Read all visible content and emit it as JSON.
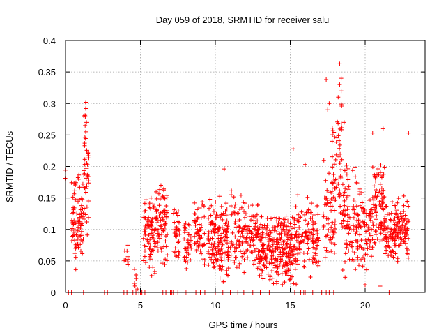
{
  "chart_data": {
    "type": "scatter",
    "title": "Day 059 of 2018, SRMTID for receiver salu",
    "xlabel": "GPS time / hours",
    "ylabel": "SRMTID / TECUs",
    "xlim": [
      0,
      24
    ],
    "ylim": [
      0,
      0.4
    ],
    "xticks": [
      0,
      5,
      10,
      15,
      20
    ],
    "xtick_labels": [
      "0",
      "5",
      "10",
      "15",
      "20"
    ],
    "yticks": [
      0,
      0.05,
      0.1,
      0.15,
      0.2,
      0.25,
      0.3,
      0.35,
      0.4
    ],
    "ytick_labels": [
      "0",
      "0.05",
      "0.1",
      "0.15",
      "0.2",
      "0.25",
      "0.3",
      "0.35",
      "0.4"
    ],
    "grid": true,
    "marker": "+",
    "color": "#ff0000",
    "clusters": [
      {
        "x_range": [
          -0.05,
          0.1
        ],
        "y_range": [
          0.17,
          0.2
        ],
        "n": 3
      },
      {
        "x_range": [
          0.4,
          1.2
        ],
        "y_range": [
          0.03,
          0.19
        ],
        "n": 90
      },
      {
        "x_range": [
          1.2,
          1.55
        ],
        "y_range": [
          0.08,
          0.3
        ],
        "n": 40
      },
      {
        "x_range": [
          3.9,
          4.2
        ],
        "y_range": [
          0.02,
          0.09
        ],
        "n": 12
      },
      {
        "x_range": [
          4.6,
          4.8
        ],
        "y_range": [
          0.0,
          0.06
        ],
        "n": 6
      },
      {
        "x_range": [
          5.2,
          6.0
        ],
        "y_range": [
          0.02,
          0.17
        ],
        "n": 80
      },
      {
        "x_range": [
          6.0,
          6.8
        ],
        "y_range": [
          0.04,
          0.18
        ],
        "n": 80
      },
      {
        "x_range": [
          7.2,
          7.6
        ],
        "y_range": [
          0.03,
          0.14
        ],
        "n": 35
      },
      {
        "x_range": [
          7.9,
          8.4
        ],
        "y_range": [
          0.02,
          0.12
        ],
        "n": 40
      },
      {
        "x_range": [
          8.6,
          9.3
        ],
        "y_range": [
          0.03,
          0.15
        ],
        "n": 55
      },
      {
        "x_range": [
          9.5,
          10.2
        ],
        "y_range": [
          0.01,
          0.16
        ],
        "n": 80
      },
      {
        "x_range": [
          10.2,
          10.9
        ],
        "y_range": [
          0.0,
          0.17
        ],
        "n": 85
      },
      {
        "x_range": [
          11.0,
          12.0
        ],
        "y_range": [
          0.02,
          0.17
        ],
        "n": 80
      },
      {
        "x_range": [
          12.0,
          12.9
        ],
        "y_range": [
          0.03,
          0.15
        ],
        "n": 70
      },
      {
        "x_range": [
          12.9,
          14.2
        ],
        "y_range": [
          0.01,
          0.13
        ],
        "n": 150
      },
      {
        "x_range": [
          14.2,
          15.5
        ],
        "y_range": [
          0.01,
          0.14
        ],
        "n": 150
      },
      {
        "x_range": [
          15.5,
          16.9
        ],
        "y_range": [
          0.02,
          0.16
        ],
        "n": 110
      },
      {
        "x_range": [
          17.2,
          18.0
        ],
        "y_range": [
          0.04,
          0.22
        ],
        "n": 60
      },
      {
        "x_range": [
          17.8,
          18.5
        ],
        "y_range": [
          0.08,
          0.32
        ],
        "n": 55
      },
      {
        "x_range": [
          18.5,
          19.5
        ],
        "y_range": [
          0.02,
          0.22
        ],
        "n": 90
      },
      {
        "x_range": [
          19.5,
          20.5
        ],
        "y_range": [
          0.02,
          0.18
        ],
        "n": 80
      },
      {
        "x_range": [
          20.5,
          21.3
        ],
        "y_range": [
          0.06,
          0.22
        ],
        "n": 80
      },
      {
        "x_range": [
          21.3,
          22.0
        ],
        "y_range": [
          0.03,
          0.15
        ],
        "n": 70
      },
      {
        "x_range": [
          22.0,
          22.9
        ],
        "y_range": [
          0.04,
          0.16
        ],
        "n": 90
      }
    ],
    "extra_points": [
      {
        "x": 18.3,
        "y": 0.363
      },
      {
        "x": 17.4,
        "y": 0.338
      },
      {
        "x": 18.4,
        "y": 0.34
      },
      {
        "x": 18.3,
        "y": 0.33
      },
      {
        "x": 18.4,
        "y": 0.32
      },
      {
        "x": 17.6,
        "y": 0.3
      },
      {
        "x": 18.2,
        "y": 0.31
      },
      {
        "x": 1.35,
        "y": 0.302
      },
      {
        "x": 1.35,
        "y": 0.292
      },
      {
        "x": 21.0,
        "y": 0.272
      },
      {
        "x": 17.5,
        "y": 0.29
      },
      {
        "x": 18.6,
        "y": 0.27
      },
      {
        "x": 1.4,
        "y": 0.27
      },
      {
        "x": 1.35,
        "y": 0.255
      },
      {
        "x": 22.9,
        "y": 0.253
      },
      {
        "x": 15.2,
        "y": 0.228
      },
      {
        "x": 16.0,
        "y": 0.203
      },
      {
        "x": 10.6,
        "y": 0.196
      },
      {
        "x": 20.5,
        "y": 0.253
      },
      {
        "x": 17.8,
        "y": 0.24
      },
      {
        "x": 21.2,
        "y": 0.26
      },
      {
        "x": 20.0,
        "y": 0.012
      },
      {
        "x": 21.0,
        "y": 0.01
      },
      {
        "x": 15.4,
        "y": 0.013
      }
    ],
    "zero_points_x": [
      0.2,
      0.4,
      1.2,
      2.6,
      2.8,
      3.9,
      4.1,
      4.5,
      4.7,
      4.9,
      5.0,
      5.1,
      5.3,
      6.5,
      6.7,
      7.0,
      7.1,
      7.2,
      7.5,
      8.0,
      8.1,
      8.7,
      9.0,
      9.3,
      10.0,
      10.5,
      11.0,
      11.5,
      11.9,
      12.5,
      13.0,
      13.6,
      15.3,
      15.7,
      15.9,
      16.0,
      16.5,
      17.1,
      17.4,
      17.6,
      17.9,
      21.6
    ]
  }
}
